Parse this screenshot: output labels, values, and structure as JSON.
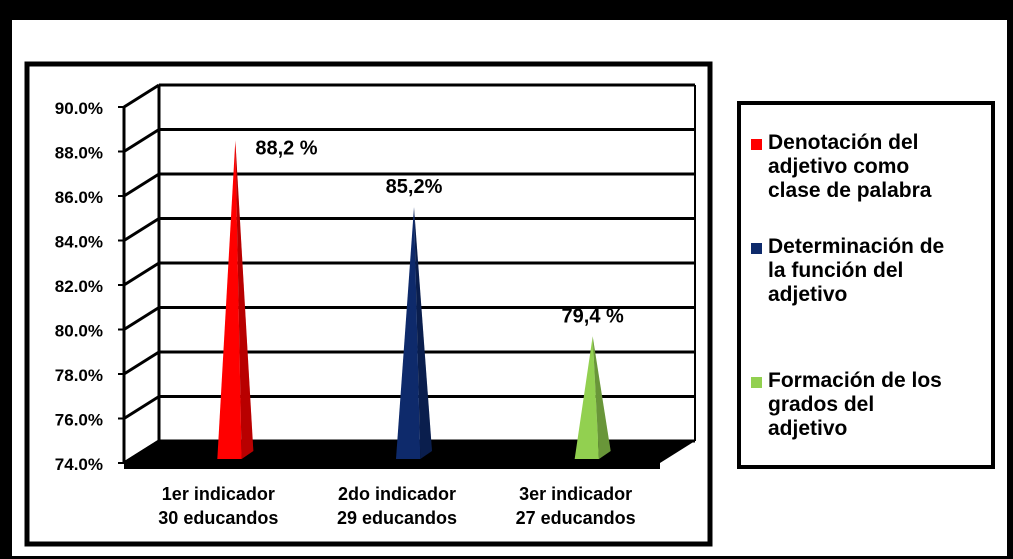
{
  "chart_data": {
    "type": "bar",
    "categories": [
      "1er indicador\n30 educandos",
      "2do indicador\n29  educandos",
      "3er indicador\n27  educandos"
    ],
    "series": [
      {
        "name": "Denotación del adjetivo como clase de palabra",
        "values": [
          88.2,
          null,
          null
        ],
        "color": "#ff0000",
        "data_label": "88,2 %"
      },
      {
        "name": "Determinación de la función del adjetivo",
        "values": [
          null,
          85.2,
          null
        ],
        "color": "#0e2a6b",
        "data_label": "85,2%"
      },
      {
        "name": "Formación de los grados del adjetivo",
        "values": [
          null,
          null,
          79.4
        ],
        "color": "#92d050",
        "data_label": "79,4  %"
      }
    ],
    "y_ticks": [
      "74.0%",
      "76.0%",
      "78.0%",
      "80.0%",
      "82.0%",
      "84.0%",
      "86.0%",
      "88.0%",
      "90.0%"
    ],
    "ylim": [
      74,
      90
    ],
    "bar_shape": "cone",
    "grid": true,
    "legend_position": "right"
  },
  "legend": {
    "items": [
      {
        "label": "Denotación del\nadjetivo como\nclase de palabra",
        "color": "#ff0000"
      },
      {
        "label": "Determinación de\nla función del\nadjetivo",
        "color": "#0e2a6b"
      },
      {
        "label": "Formación de los\ngrados del\nadjetivo",
        "color": "#92d050"
      }
    ]
  }
}
